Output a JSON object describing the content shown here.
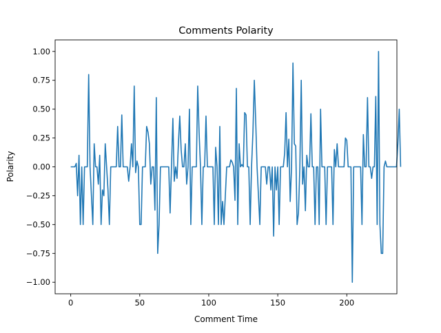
{
  "chart_data": {
    "type": "line",
    "title": "Comments Polarity",
    "xlabel": "Comment Time",
    "ylabel": "Polarity",
    "xlim": [
      -11.3,
      236.3
    ],
    "ylim": [
      -1.1,
      1.1
    ],
    "xticks": [
      0,
      50,
      100,
      150,
      200
    ],
    "xtick_labels": [
      "0",
      "50",
      "100",
      "150",
      "200"
    ],
    "yticks": [
      -1.0,
      -0.75,
      -0.5,
      -0.25,
      0.0,
      0.25,
      0.5,
      0.75,
      1.0
    ],
    "ytick_labels": [
      "−1.00",
      "−0.75",
      "−0.50",
      "−0.25",
      "0.00",
      "0.25",
      "0.50",
      "0.75",
      "1.00"
    ],
    "grid": false,
    "line_color": "#1f77b4",
    "series": [
      {
        "values": [
          0,
          0,
          0,
          0,
          0.03,
          -0.25,
          0.1,
          -0.5,
          0,
          -0.5,
          0,
          0,
          0,
          0.8,
          0,
          -0.25,
          -0.5,
          0.2,
          0,
          0,
          -0.15,
          0.1,
          -0.5,
          -0.2,
          -0.25,
          0.2,
          0,
          -0.2,
          -0.5,
          0,
          0,
          0,
          0,
          0,
          0.35,
          0,
          0,
          0.45,
          0,
          0,
          0,
          0,
          -0.125,
          0,
          0.2,
          0,
          0.7,
          -0.05,
          0.05,
          0,
          -0.5,
          -0.5,
          0,
          0,
          0,
          0.35,
          0.3,
          0.2,
          -0.15,
          0,
          0,
          -0.375,
          0.6,
          -0.75,
          -0.5,
          0,
          0,
          0,
          0,
          0,
          0,
          0,
          -0.4,
          0,
          0.42,
          -0.125,
          0,
          -0.1,
          0.2,
          0.44,
          0.15,
          0,
          0,
          0.2,
          -0.15,
          0,
          0.5,
          -0.5,
          0,
          0,
          0,
          0,
          0.7,
          0.3,
          0,
          -0.5,
          0,
          0,
          0.44,
          0,
          0,
          0,
          0,
          0,
          -0.5,
          0.17,
          0,
          -0.5,
          0.35,
          -0.5,
          -0.3,
          -0.5,
          -0.25,
          0,
          0,
          0,
          0.06,
          0.04,
          0,
          -0.29,
          0.68,
          -0.5,
          0.2,
          0,
          0.02,
          0,
          0.47,
          0.45,
          0,
          0,
          -0.5,
          0,
          0.3,
          0.75,
          0.4,
          0,
          -0.25,
          -0.5,
          0,
          0,
          0,
          0,
          -0.15,
          0,
          0,
          -0.2,
          0,
          -0.6,
          0,
          -0.2,
          0,
          -0.5,
          0,
          0,
          0,
          0.12,
          0.47,
          0,
          0.24,
          -0.3,
          0,
          0.9,
          0.2,
          0.18,
          -0.5,
          -0.4,
          0,
          0.75,
          -0.15,
          0,
          -0.38,
          0.1,
          0,
          0,
          0.46,
          0,
          0,
          -0.5,
          0,
          0,
          -0.5,
          0.5,
          0,
          0,
          0,
          -0.5,
          0,
          0,
          0,
          0,
          -0.5,
          0.15,
          0,
          0.2,
          0,
          0,
          0,
          0,
          0,
          0.25,
          0.23,
          0,
          0,
          0,
          -1.0,
          0,
          0,
          0,
          0,
          0,
          0,
          -0.5,
          0.28,
          0,
          0,
          0.6,
          0,
          0,
          -0.1,
          0,
          0,
          0.61,
          -0.5,
          1.0,
          -0.5,
          -0.75,
          -0.75,
          0,
          0.05,
          0,
          0,
          0,
          0,
          0,
          0,
          0,
          0,
          0.2,
          0.5,
          0
        ]
      }
    ]
  }
}
